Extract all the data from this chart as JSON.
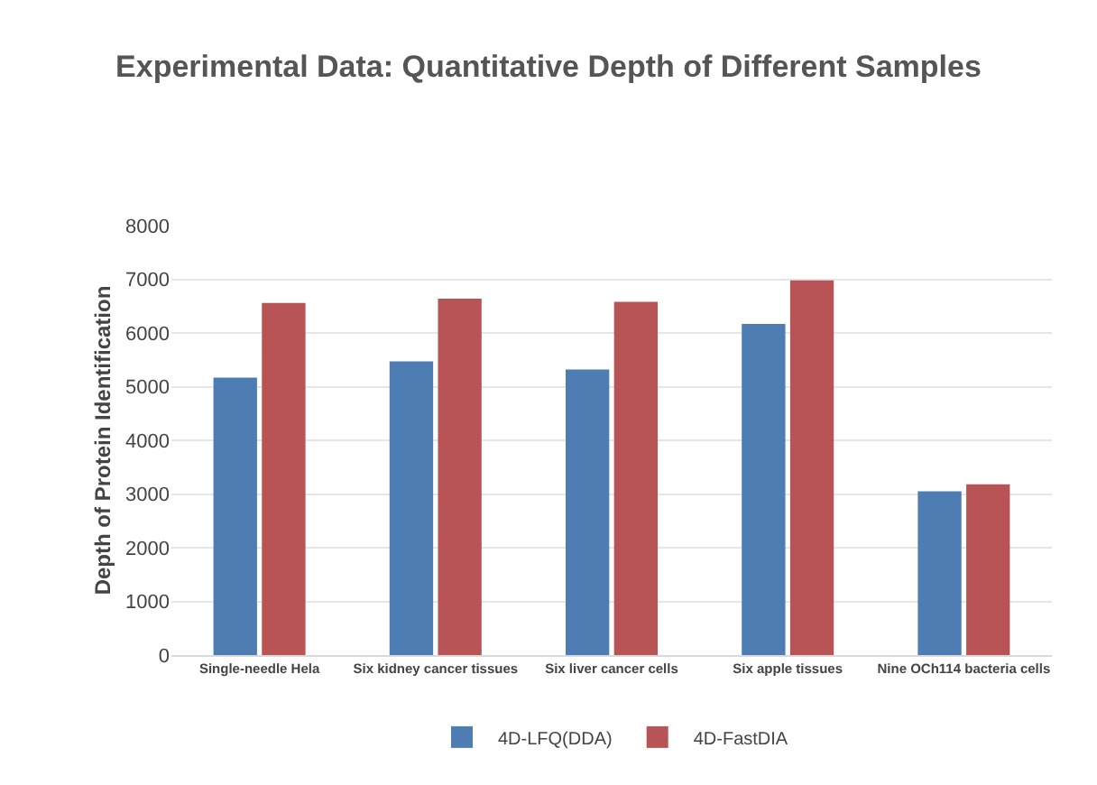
{
  "chart_data": {
    "type": "bar",
    "title": "Experimental Data: Quantitative Depth of Different Samples",
    "ylabel": "Depth of Protein Identification",
    "categories": [
      "Single-needle Hela",
      "Six kidney cancer tissues",
      "Six liver cancer cells",
      "Six apple tissues",
      "Nine OCh114 bacteria cells"
    ],
    "series": [
      {
        "name": "4D-LFQ(DDA)",
        "color": "#4e7db3",
        "values": [
          5170,
          5470,
          5320,
          6170,
          3050
        ]
      },
      {
        "name": "4D-FastDIA",
        "color": "#b85456",
        "values": [
          6560,
          6640,
          6580,
          6980,
          3180
        ]
      }
    ],
    "ylim": [
      0,
      8000
    ],
    "yticks": [
      0,
      1000,
      2000,
      3000,
      4000,
      5000,
      6000,
      7000,
      8000
    ],
    "grid": "y",
    "legend": "bottom"
  }
}
